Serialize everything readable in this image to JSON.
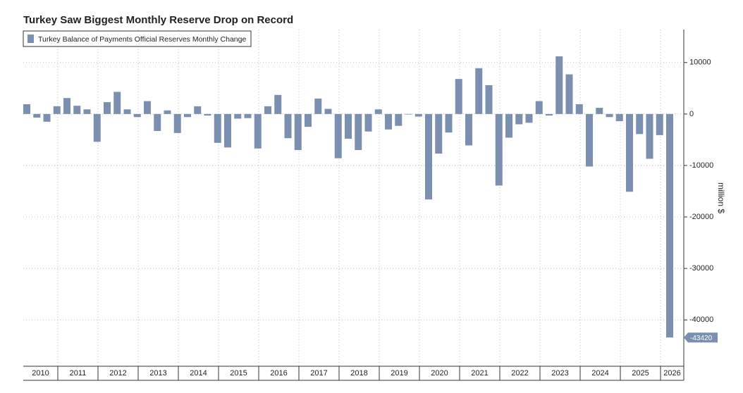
{
  "chart_data": {
    "type": "bar",
    "title": "Turkey Saw Biggest Monthly Reserve Drop on Record",
    "y_label": "million $",
    "year_labels": [
      "2010",
      "2011",
      "2012",
      "2013",
      "2014",
      "2015",
      "2016",
      "2017",
      "2018",
      "2019",
      "2020",
      "2021",
      "2022",
      "2023",
      "2024",
      "2025",
      "2026"
    ],
    "categories": [
      null,
      null,
      null,
      null,
      null,
      null,
      null,
      null,
      null,
      null,
      null,
      null,
      null,
      null,
      null,
      null,
      null,
      null,
      null,
      null,
      null,
      null,
      null,
      null,
      null,
      null,
      null,
      null,
      null,
      null,
      null,
      null,
      null,
      null,
      null,
      null,
      null,
      null,
      null,
      null,
      null,
      null,
      null,
      null,
      null,
      null,
      null,
      null,
      null,
      null,
      null,
      null,
      null,
      null,
      null,
      null,
      null,
      null,
      null,
      null,
      null,
      null,
      null,
      null,
      null
    ],
    "series": [
      {
        "name": "Turkey Balance of Payments Official Reserves Monthly Change",
        "color": "#7b8fb0",
        "values": [
          1900,
          -700,
          -1500,
          1500,
          3100,
          1600,
          900,
          -5400,
          2300,
          4300,
          900,
          -600,
          2500,
          -3300,
          700,
          -3700,
          -600,
          1500,
          -300,
          -5600,
          -6500,
          -900,
          -800,
          -6700,
          1500,
          3700,
          -4700,
          -7000,
          -2500,
          3000,
          1000,
          -8600,
          -4800,
          -7000,
          -3400,
          900,
          -3000,
          -2300,
          -100,
          -500,
          -16600,
          -7700,
          -3600,
          6800,
          -6100,
          8900,
          5600,
          -13900,
          -4600,
          -2000,
          -1700,
          2500,
          -300,
          11200,
          7700,
          1900,
          -10200,
          1200,
          -600,
          -1400,
          -15100,
          -3900,
          -8700,
          -4100,
          -43420
        ]
      }
    ],
    "ylim": [
      -49000,
      16400
    ],
    "yticks": [
      10000,
      0,
      -10000,
      -20000,
      -30000,
      -40000
    ],
    "grid": true,
    "legend": "top-left"
  }
}
